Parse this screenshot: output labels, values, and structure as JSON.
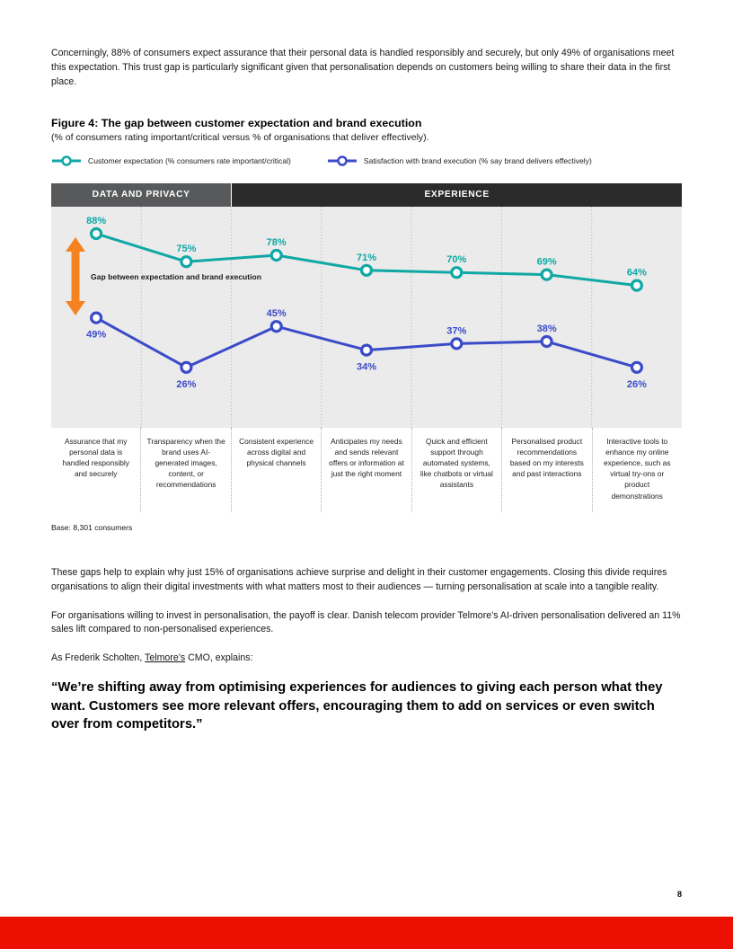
{
  "page": {
    "number": "8"
  },
  "intro_paragraph": "Concerningly, 88% of consumers expect assurance that their personal data is handled responsibly and securely, but only 49% of organisations meet this expectation. This trust gap is particularly significant given that personalisation depends on customers being willing to share their data in the first place.",
  "figure": {
    "title": "Figure 4: The gap between customer expectation and brand execution",
    "subtitle": "(% of consumers rating important/critical versus % of organisations that deliver effectively).",
    "legend": [
      {
        "label": "Customer expectation (% consumers rate important/critical)",
        "color": "#0FA8A5"
      },
      {
        "label": "Satisfaction with brand execution (% say brand delivers effectively)",
        "color": "#3B4BC8"
      }
    ],
    "sections": [
      {
        "label": "DATA AND PRIVACY",
        "columns": 2,
        "color": "#58595B"
      },
      {
        "label": "EXPERIENCE",
        "columns": 5,
        "color": "#2B2B2B"
      }
    ],
    "gap_label": "Gap between expectation and brand execution",
    "gap_arrow_color": "#F58220",
    "base_note": "Base: 8,301 consumers"
  },
  "chart_data": {
    "type": "line",
    "title": "Figure 4: The gap between customer expectation and brand execution",
    "xlabel": "",
    "ylabel": "",
    "ylim": [
      0,
      100
    ],
    "grid": false,
    "legend_position": "top-left",
    "plot_background": "#EBEBEB",
    "categories": [
      "Assurance that my personal data is handled responsibly and securely",
      "Transparency when the brand uses AI-generated images, content, or recommendations",
      "Consistent experience across digital and physical channels",
      "Anticipates my needs and sends relevant offers or information at just the right moment",
      "Quick and efficient support through automated systems, like chatbots or virtual assistants",
      "Personalised product recommendations based on my interests and past interactions",
      "Interactive tools to enhance my online experience, such as virtual try-ons or product demonstrations"
    ],
    "series": [
      {
        "name": "Customer expectation (% consumers rate important/critical)",
        "color": "#0FA8A5",
        "values": [
          88,
          75,
          78,
          71,
          70,
          69,
          64
        ],
        "label_side": [
          "above",
          "above",
          "above",
          "above",
          "above",
          "above",
          "above"
        ]
      },
      {
        "name": "Satisfaction with brand execution (% say brand delivers effectively)",
        "color": "#3B4BC8",
        "values": [
          49,
          26,
          45,
          34,
          37,
          38,
          26
        ],
        "label_side": [
          "below",
          "below",
          "above",
          "below",
          "above",
          "above",
          "below"
        ]
      }
    ]
  },
  "body": {
    "paragraph1": "These gaps help to explain why just 15% of organisations achieve surprise and delight in their customer engagements. Closing this divide requires organisations to align their digital investments with what matters most to their audiences — turning personalisation at scale into a tangible reality.",
    "paragraph2": "For organisations willing to invest in personalisation, the payoff is clear. Danish telecom provider Telmore’s AI-driven personalisation delivered an 11% sales lift compared to non-personalised experiences.",
    "paragraph3_prefix": "As Frederik Scholten, ",
    "paragraph3_link": "Telmore’s",
    "paragraph3_suffix": " CMO, explains:",
    "quote": "“We’re shifting away from optimising experiences for audiences to giving each person what they want. Customers see more relevant offers, encouraging them to add on services or even switch over from competitors.”"
  },
  "footer": {
    "bar_color": "#EB1000"
  }
}
